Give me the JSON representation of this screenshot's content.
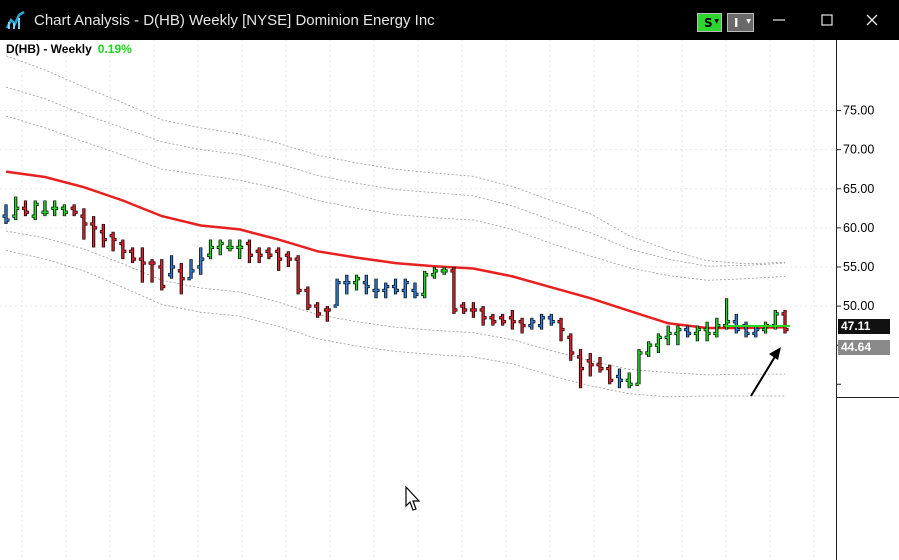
{
  "window": {
    "title": "Chart Analysis - D(HB) Weekly [NYSE] Dominion Energy Inc",
    "buttons": {
      "s_label": "S",
      "i_label": "I"
    }
  },
  "chart": {
    "symbol_label": "D(HB) - Weekly",
    "change": "0.19%",
    "last_price": "47.11",
    "second_price": "44.64",
    "colors": {
      "up": "#22d822",
      "down": "#e0202a",
      "neutral": "#2f7fd8",
      "moving_average": "#e82020"
    }
  },
  "chart_data": {
    "type": "bar",
    "xlabel": "",
    "ylabel": "",
    "ylim": [
      38.5,
      83.0
    ],
    "y_ticks": [
      "75.00",
      "70.00",
      "65.00",
      "60.00",
      "55.00",
      "50.00"
    ],
    "bars": [
      {
        "o": 61.5,
        "h": 63.0,
        "l": 60.5,
        "c": 61.0,
        "k": "n"
      },
      {
        "o": 61.5,
        "h": 64.0,
        "l": 61.0,
        "c": 62.5,
        "k": "u"
      },
      {
        "o": 62.5,
        "h": 63.5,
        "l": 61.5,
        "c": 62.0,
        "k": "d"
      },
      {
        "o": 61.5,
        "h": 63.5,
        "l": 61.0,
        "c": 63.0,
        "k": "u"
      },
      {
        "o": 62.0,
        "h": 63.5,
        "l": 61.5,
        "c": 62.0,
        "k": "u"
      },
      {
        "o": 62.5,
        "h": 63.5,
        "l": 61.5,
        "c": 62.5,
        "k": "u"
      },
      {
        "o": 62.5,
        "h": 63.0,
        "l": 61.5,
        "c": 62.0,
        "k": "u"
      },
      {
        "o": 62.5,
        "h": 63.0,
        "l": 61.5,
        "c": 62.0,
        "k": "d"
      },
      {
        "o": 61.5,
        "h": 62.5,
        "l": 58.5,
        "c": 60.5,
        "k": "d"
      },
      {
        "o": 60.5,
        "h": 61.5,
        "l": 57.5,
        "c": 60.0,
        "k": "d"
      },
      {
        "o": 59.5,
        "h": 60.5,
        "l": 57.5,
        "c": 58.5,
        "k": "d"
      },
      {
        "o": 59.0,
        "h": 59.5,
        "l": 57.0,
        "c": 58.5,
        "k": "d"
      },
      {
        "o": 58.0,
        "h": 58.5,
        "l": 56.0,
        "c": 57.0,
        "k": "d"
      },
      {
        "o": 57.0,
        "h": 57.5,
        "l": 55.5,
        "c": 56.0,
        "k": "d"
      },
      {
        "o": 56.0,
        "h": 57.5,
        "l": 53.0,
        "c": 55.5,
        "k": "d"
      },
      {
        "o": 55.5,
        "h": 56.0,
        "l": 53.0,
        "c": 55.5,
        "k": "d"
      },
      {
        "o": 55.0,
        "h": 56.0,
        "l": 52.0,
        "c": 52.5,
        "k": "d"
      },
      {
        "o": 54.0,
        "h": 56.5,
        "l": 53.5,
        "c": 55.0,
        "k": "n"
      },
      {
        "o": 54.5,
        "h": 55.5,
        "l": 51.5,
        "c": 53.5,
        "k": "d"
      },
      {
        "o": 53.5,
        "h": 56.0,
        "l": 53.5,
        "c": 54.5,
        "k": "n"
      },
      {
        "o": 55.0,
        "h": 57.5,
        "l": 54.0,
        "c": 56.0,
        "k": "n"
      },
      {
        "o": 56.5,
        "h": 58.5,
        "l": 56.0,
        "c": 57.5,
        "k": "u"
      },
      {
        "o": 57.5,
        "h": 58.5,
        "l": 56.5,
        "c": 58.0,
        "k": "u"
      },
      {
        "o": 57.5,
        "h": 58.5,
        "l": 57.0,
        "c": 57.5,
        "k": "u"
      },
      {
        "o": 57.5,
        "h": 58.5,
        "l": 56.0,
        "c": 57.5,
        "k": "u"
      },
      {
        "o": 58.0,
        "h": 58.5,
        "l": 55.5,
        "c": 56.5,
        "k": "d"
      },
      {
        "o": 57.0,
        "h": 57.5,
        "l": 55.5,
        "c": 56.5,
        "k": "d"
      },
      {
        "o": 57.0,
        "h": 57.5,
        "l": 56.0,
        "c": 56.5,
        "k": "d"
      },
      {
        "o": 57.0,
        "h": 57.5,
        "l": 54.5,
        "c": 56.0,
        "k": "d"
      },
      {
        "o": 56.5,
        "h": 57.0,
        "l": 55.0,
        "c": 56.0,
        "k": "d"
      },
      {
        "o": 56.0,
        "h": 56.5,
        "l": 51.5,
        "c": 52.0,
        "k": "d"
      },
      {
        "o": 52.0,
        "h": 52.5,
        "l": 49.5,
        "c": 50.0,
        "k": "d"
      },
      {
        "o": 50.0,
        "h": 50.5,
        "l": 48.5,
        "c": 49.0,
        "k": "d"
      },
      {
        "o": 49.5,
        "h": 50.0,
        "l": 48.0,
        "c": 49.5,
        "k": "d"
      },
      {
        "o": 50.0,
        "h": 53.5,
        "l": 50.0,
        "c": 53.0,
        "k": "n"
      },
      {
        "o": 53.0,
        "h": 54.0,
        "l": 51.5,
        "c": 53.0,
        "k": "n"
      },
      {
        "o": 53.0,
        "h": 54.0,
        "l": 52.0,
        "c": 53.5,
        "k": "u"
      },
      {
        "o": 53.0,
        "h": 54.0,
        "l": 51.5,
        "c": 52.5,
        "k": "n"
      },
      {
        "o": 52.0,
        "h": 53.5,
        "l": 51.0,
        "c": 52.0,
        "k": "n"
      },
      {
        "o": 52.0,
        "h": 53.0,
        "l": 51.0,
        "c": 52.5,
        "k": "n"
      },
      {
        "o": 52.5,
        "h": 53.5,
        "l": 51.5,
        "c": 52.0,
        "k": "n"
      },
      {
        "o": 52.0,
        "h": 53.5,
        "l": 51.0,
        "c": 53.0,
        "k": "n"
      },
      {
        "o": 52.0,
        "h": 53.0,
        "l": 51.0,
        "c": 51.5,
        "k": "n"
      },
      {
        "o": 51.5,
        "h": 54.5,
        "l": 51.0,
        "c": 54.0,
        "k": "u"
      },
      {
        "o": 54.0,
        "h": 55.0,
        "l": 53.5,
        "c": 54.5,
        "k": "u"
      },
      {
        "o": 54.5,
        "h": 55.0,
        "l": 54.0,
        "c": 54.5,
        "k": "u"
      },
      {
        "o": 54.5,
        "h": 55.0,
        "l": 49.0,
        "c": 49.5,
        "k": "d"
      },
      {
        "o": 50.0,
        "h": 50.5,
        "l": 49.0,
        "c": 49.5,
        "k": "d"
      },
      {
        "o": 49.5,
        "h": 50.5,
        "l": 48.5,
        "c": 49.5,
        "k": "d"
      },
      {
        "o": 49.5,
        "h": 50.0,
        "l": 47.5,
        "c": 48.5,
        "k": "d"
      },
      {
        "o": 48.5,
        "h": 49.0,
        "l": 47.5,
        "c": 48.0,
        "k": "d"
      },
      {
        "o": 48.5,
        "h": 49.0,
        "l": 47.5,
        "c": 48.0,
        "k": "d"
      },
      {
        "o": 48.5,
        "h": 49.5,
        "l": 47.0,
        "c": 48.0,
        "k": "d"
      },
      {
        "o": 48.0,
        "h": 48.5,
        "l": 46.5,
        "c": 47.5,
        "k": "d"
      },
      {
        "o": 47.5,
        "h": 48.5,
        "l": 47.0,
        "c": 48.0,
        "k": "n"
      },
      {
        "o": 47.5,
        "h": 49.0,
        "l": 47.0,
        "c": 48.5,
        "k": "n"
      },
      {
        "o": 48.5,
        "h": 49.0,
        "l": 47.5,
        "c": 48.0,
        "k": "n"
      },
      {
        "o": 48.0,
        "h": 48.5,
        "l": 45.5,
        "c": 47.0,
        "k": "d"
      },
      {
        "o": 46.0,
        "h": 46.5,
        "l": 43.0,
        "c": 44.0,
        "k": "d"
      },
      {
        "o": 43.5,
        "h": 44.5,
        "l": 39.5,
        "c": 42.0,
        "k": "d"
      },
      {
        "o": 43.0,
        "h": 44.0,
        "l": 41.0,
        "c": 42.5,
        "k": "d"
      },
      {
        "o": 42.5,
        "h": 43.5,
        "l": 41.5,
        "c": 42.0,
        "k": "d"
      },
      {
        "o": 42.0,
        "h": 42.5,
        "l": 40.0,
        "c": 40.5,
        "k": "d"
      },
      {
        "o": 41.0,
        "h": 42.0,
        "l": 39.5,
        "c": 40.5,
        "k": "n"
      },
      {
        "o": 40.5,
        "h": 41.5,
        "l": 39.5,
        "c": 40.0,
        "k": "u"
      },
      {
        "o": 40.0,
        "h": 44.5,
        "l": 40.0,
        "c": 44.0,
        "k": "u"
      },
      {
        "o": 44.0,
        "h": 45.5,
        "l": 43.5,
        "c": 45.0,
        "k": "u"
      },
      {
        "o": 45.0,
        "h": 46.5,
        "l": 44.0,
        "c": 46.0,
        "k": "u"
      },
      {
        "o": 46.0,
        "h": 47.5,
        "l": 45.0,
        "c": 46.5,
        "k": "u"
      },
      {
        "o": 46.5,
        "h": 47.5,
        "l": 45.0,
        "c": 47.0,
        "k": "u"
      },
      {
        "o": 47.0,
        "h": 47.5,
        "l": 46.0,
        "c": 46.5,
        "k": "n"
      },
      {
        "o": 46.5,
        "h": 47.5,
        "l": 45.5,
        "c": 47.0,
        "k": "u"
      },
      {
        "o": 47.0,
        "h": 48.0,
        "l": 45.5,
        "c": 46.5,
        "k": "u"
      },
      {
        "o": 46.5,
        "h": 48.5,
        "l": 46.0,
        "c": 47.5,
        "k": "u"
      },
      {
        "o": 47.5,
        "h": 51.0,
        "l": 47.0,
        "c": 48.0,
        "k": "u"
      },
      {
        "o": 48.0,
        "h": 49.0,
        "l": 46.5,
        "c": 47.0,
        "k": "n"
      },
      {
        "o": 47.5,
        "h": 48.0,
        "l": 46.0,
        "c": 46.5,
        "k": "n"
      },
      {
        "o": 46.5,
        "h": 47.5,
        "l": 46.0,
        "c": 47.0,
        "k": "n"
      },
      {
        "o": 47.0,
        "h": 48.0,
        "l": 46.5,
        "c": 47.5,
        "k": "u"
      },
      {
        "o": 47.5,
        "h": 49.5,
        "l": 47.0,
        "c": 49.0,
        "k": "u"
      },
      {
        "o": 49.0,
        "h": 49.5,
        "l": 46.5,
        "c": 47.0,
        "k": "d"
      }
    ],
    "moving_average": [
      67.2,
      66.5,
      65.2,
      63.5,
      61.5,
      60.3,
      59.8,
      58.5,
      57.0,
      56.2,
      55.5,
      55.1,
      54.8,
      53.8,
      52.4,
      51.0,
      49.4,
      47.8,
      47.2,
      47.2,
      47.3
    ],
    "upper_bands": [
      [
        74.3,
        72.8,
        71.0,
        69.3,
        67.5,
        66.8,
        66.1,
        65.0,
        63.5,
        62.5,
        61.7,
        61.3,
        61.0,
        59.8,
        58.0,
        56.4,
        54.9,
        53.9,
        53.3,
        53.5,
        53.8
      ],
      [
        78.0,
        76.5,
        74.5,
        72.8,
        71.0,
        70.0,
        69.4,
        68.2,
        66.7,
        65.7,
        64.9,
        64.5,
        64.1,
        62.8,
        61.0,
        59.4,
        57.3,
        56.0,
        55.1,
        55.2,
        55.5
      ],
      [
        82.0,
        80.2,
        78.0,
        76.0,
        73.8,
        72.8,
        72.0,
        70.8,
        69.3,
        68.3,
        67.5,
        67.0,
        66.6,
        65.3,
        63.5,
        61.8,
        59.0,
        57.2,
        55.8,
        55.4,
        55.6
      ]
    ],
    "lower_bands": [
      [
        59.6,
        58.7,
        57.3,
        55.4,
        53.3,
        52.3,
        51.8,
        50.5,
        48.9,
        48.0,
        47.3,
        46.9,
        46.6,
        45.7,
        44.3,
        43.0,
        41.9,
        41.5,
        41.2,
        41.3,
        41.3
      ],
      [
        57.1,
        56.0,
        54.5,
        52.4,
        50.2,
        49.2,
        48.7,
        47.4,
        45.8,
        44.9,
        44.2,
        43.8,
        43.5,
        42.6,
        41.1,
        39.8,
        38.8,
        38.4,
        38.5,
        38.5,
        38.5
      ]
    ]
  }
}
